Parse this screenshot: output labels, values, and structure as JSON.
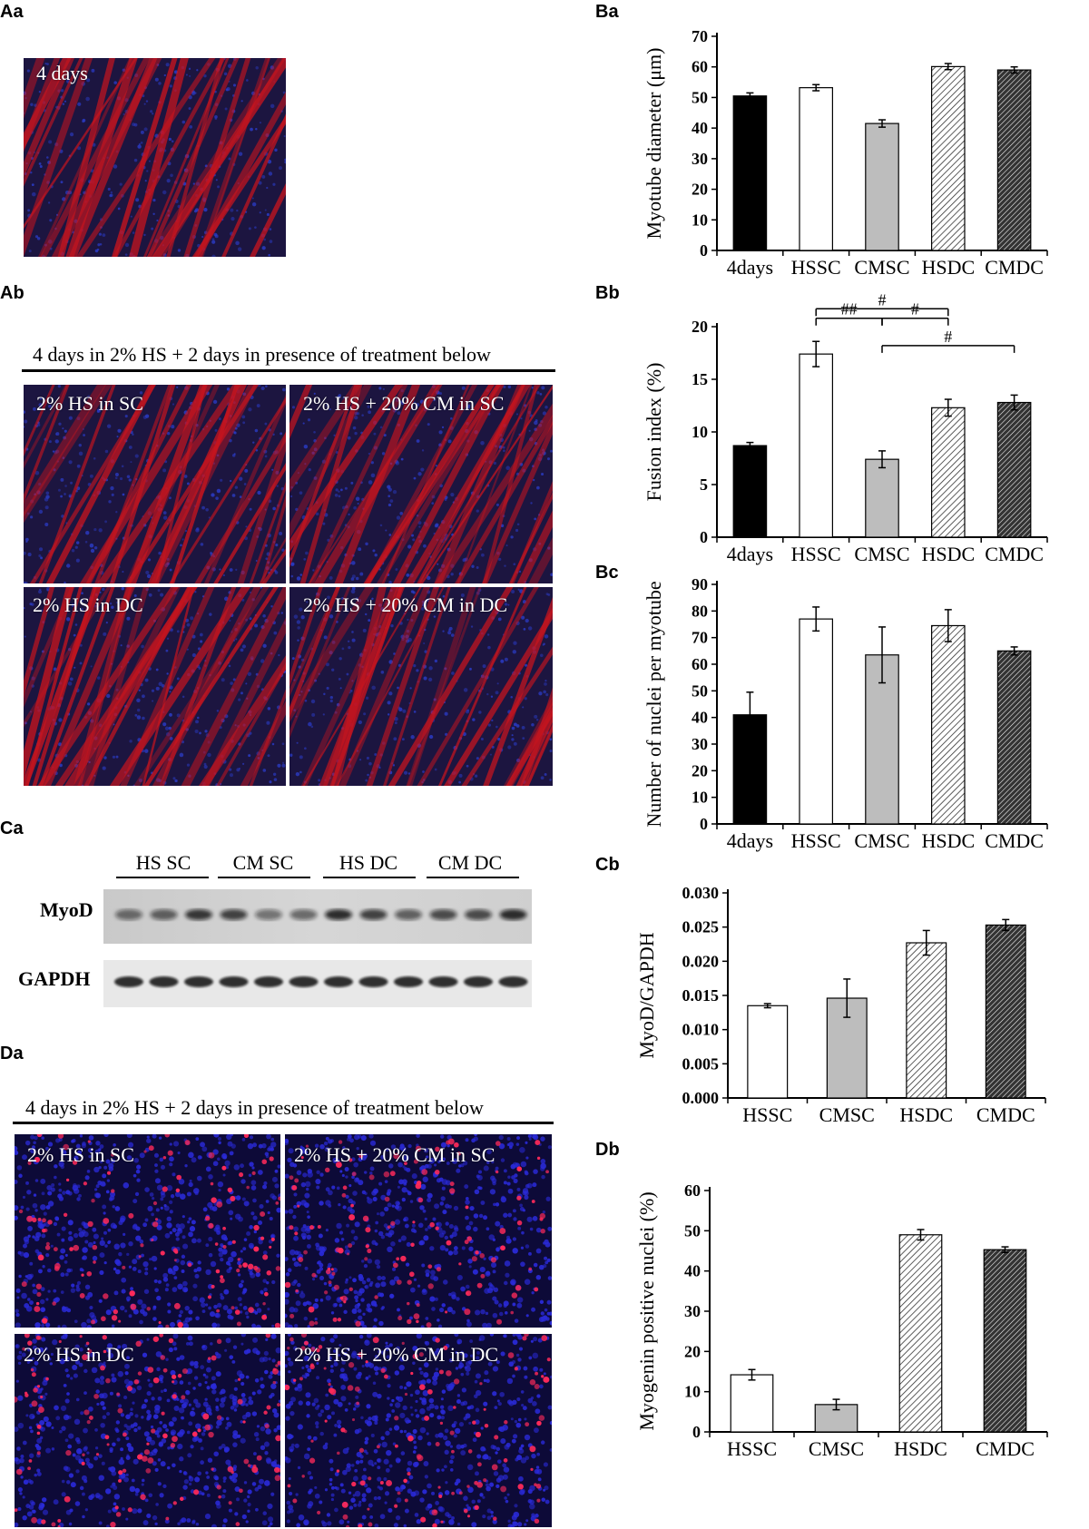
{
  "panels": {
    "Aa": {
      "label": "Aa",
      "image_caption": "4 days"
    },
    "Ab": {
      "label": "Ab",
      "banner": "4 days in 2% HS + 2 days in presence of treatment below",
      "captions": [
        "2% HS in SC",
        "2% HS + 20% CM in SC",
        "2% HS in DC",
        "2% HS + 20% CM in DC"
      ]
    },
    "Ca": {
      "label": "Ca",
      "groups": [
        "HS SC",
        "CM SC",
        "HS DC",
        "CM DC"
      ],
      "rows": [
        "MyoD",
        "GAPDH"
      ]
    },
    "Da": {
      "label": "Da",
      "banner": "4 days in 2% HS + 2 days in presence of treatment below",
      "captions": [
        "2% HS in SC",
        "2% HS + 20% CM in SC",
        "2% HS in DC",
        "2% HS + 20% CM in DC"
      ]
    },
    "Ba": {
      "label": "Ba"
    },
    "Bb": {
      "label": "Bb"
    },
    "Bc": {
      "label": "Bc"
    },
    "Cb": {
      "label": "Cb"
    },
    "Db": {
      "label": "Db"
    }
  },
  "colors": {
    "nuclei": "#1a1ad0",
    "actin": "#c8141e",
    "myogenin": "#ff2a5a",
    "dark_bar": "#000000",
    "grey_bar": "#bdbdbd"
  },
  "chart_data": [
    {
      "id": "Ba",
      "type": "bar",
      "categories": [
        "4days",
        "HSSC",
        "CMSC",
        "HSDC",
        "CMDC"
      ],
      "values": [
        50.5,
        53.2,
        41.5,
        60.1,
        59.0
      ],
      "errors": [
        1.0,
        1.0,
        1.2,
        1.0,
        1.0
      ],
      "fills": [
        "black",
        "white",
        "grey",
        "hatch-light",
        "hatch-dark"
      ],
      "ylabel": "Myotube diameter (μm)",
      "ylim": [
        0,
        70
      ],
      "yticks": [
        0,
        10,
        20,
        30,
        40,
        50,
        60,
        70
      ],
      "tick_decimals": 0
    },
    {
      "id": "Bb",
      "type": "bar",
      "categories": [
        "4days",
        "HSSC",
        "CMSC",
        "HSDC",
        "CMDC"
      ],
      "values": [
        8.7,
        17.4,
        7.4,
        12.3,
        12.8
      ],
      "errors": [
        0.3,
        1.2,
        0.8,
        0.8,
        0.7
      ],
      "fills": [
        "black",
        "white",
        "grey",
        "hatch-light",
        "hatch-dark"
      ],
      "ylabel": "Fusion index (%)",
      "ylim": [
        0,
        20
      ],
      "yticks": [
        0,
        5,
        10,
        15,
        20
      ],
      "tick_decimals": 0,
      "annotations": [
        {
          "text": "#",
          "from": "HSSC",
          "to": "HSDC",
          "level": 21.7
        },
        {
          "text": "##",
          "from": "HSSC",
          "to": "CMSC",
          "level": 20.8
        },
        {
          "text": "#",
          "from": "CMSC",
          "to": "HSDC",
          "level": 20.8
        },
        {
          "text": "#",
          "from": "CMSC",
          "to": "CMDC",
          "level": 18.2
        }
      ]
    },
    {
      "id": "Bc",
      "type": "bar",
      "categories": [
        "4days",
        "HSSC",
        "CMSC",
        "HSDC",
        "CMDC"
      ],
      "values": [
        41,
        77,
        63.5,
        74.5,
        65
      ],
      "errors": [
        8.5,
        4.5,
        10.5,
        6.0,
        1.5
      ],
      "fills": [
        "black",
        "white",
        "grey",
        "hatch-light",
        "hatch-dark"
      ],
      "ylabel": "Number of nuclei per myotube",
      "ylim": [
        0,
        90
      ],
      "yticks": [
        0,
        10,
        20,
        30,
        40,
        50,
        60,
        70,
        80,
        90
      ],
      "tick_decimals": 0
    },
    {
      "id": "Cb",
      "type": "bar",
      "categories": [
        "HSSC",
        "CMSC",
        "HSDC",
        "CMDC"
      ],
      "values": [
        0.0135,
        0.0146,
        0.0227,
        0.0253
      ],
      "errors": [
        0.0003,
        0.0028,
        0.0018,
        0.0008
      ],
      "fills": [
        "white",
        "grey",
        "hatch-light",
        "hatch-dark"
      ],
      "ylabel": "MyoD/GAPDH",
      "ylim": [
        0,
        0.03
      ],
      "yticks": [
        0,
        0.005,
        0.01,
        0.015,
        0.02,
        0.025,
        0.03
      ],
      "tick_decimals": 3
    },
    {
      "id": "Db",
      "type": "bar",
      "categories": [
        "HSSC",
        "CMSC",
        "HSDC",
        "CMDC"
      ],
      "values": [
        14.2,
        6.8,
        49.0,
        45.3
      ],
      "errors": [
        1.3,
        1.3,
        1.3,
        0.7
      ],
      "fills": [
        "white",
        "grey",
        "hatch-light",
        "hatch-dark"
      ],
      "ylabel": "Myogenin positive nuclei (%)",
      "ylim": [
        0,
        60
      ],
      "yticks": [
        0,
        10,
        20,
        30,
        40,
        50,
        60
      ],
      "tick_decimals": 0
    }
  ]
}
